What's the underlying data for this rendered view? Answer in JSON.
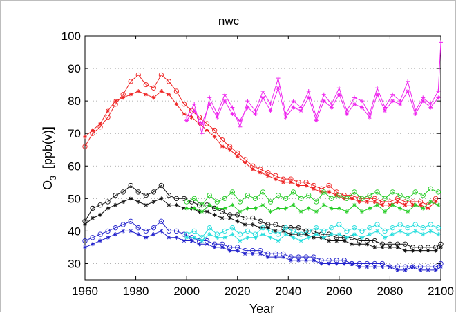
{
  "chart_data": {
    "type": "line",
    "title": "nwc",
    "xlabel": "Year",
    "ylabel_main": "O",
    "ylabel_sub": "3",
    "ylabel_unit": "[ppb(v)]",
    "xlim": [
      1960,
      2100
    ],
    "ylim": [
      25,
      100
    ],
    "xticks": [
      1960,
      1980,
      2000,
      2020,
      2040,
      2060,
      2080,
      2100
    ],
    "yticks": [
      30,
      40,
      50,
      60,
      70,
      80,
      90,
      100
    ],
    "grid": "horizontal dotted",
    "series": [
      {
        "color": "#ee2222",
        "marker": "circle",
        "x": [
          1960,
          1963,
          1966,
          1969,
          1972,
          1975,
          1978,
          1981,
          1984,
          1987,
          1990,
          1993,
          1996,
          1999,
          2002,
          2005,
          2008,
          2011,
          2014,
          2017,
          2020,
          2023,
          2026,
          2029,
          2032,
          2035,
          2038,
          2041,
          2044,
          2047,
          2050,
          2053,
          2056,
          2059,
          2062,
          2065,
          2068,
          2071,
          2074,
          2077,
          2080,
          2083,
          2086,
          2089,
          2092,
          2095,
          2098
        ],
        "values": [
          66,
          70,
          72,
          75,
          79,
          82,
          86,
          88,
          85,
          84,
          88,
          86,
          83,
          79,
          77,
          75,
          73,
          71,
          68,
          66,
          64,
          62,
          60,
          59,
          58,
          57,
          56,
          56,
          55,
          55,
          54,
          53,
          54,
          52,
          51,
          51,
          50,
          50,
          50,
          49,
          49,
          50,
          49,
          49,
          49,
          48,
          50
        ]
      },
      {
        "color": "#ee2222",
        "marker": "star",
        "x": [
          1960,
          1963,
          1966,
          1969,
          1972,
          1975,
          1978,
          1981,
          1984,
          1987,
          1990,
          1993,
          1996,
          1999,
          2002,
          2005,
          2008,
          2011,
          2014,
          2017,
          2020,
          2023,
          2026,
          2029,
          2032,
          2035,
          2038,
          2041,
          2044,
          2047,
          2050,
          2053,
          2056,
          2059,
          2062,
          2065,
          2068,
          2071,
          2074,
          2077,
          2080,
          2083,
          2086,
          2089,
          2092,
          2095,
          2098
        ],
        "values": [
          69,
          71,
          73,
          77,
          80,
          81,
          82,
          83,
          82,
          81,
          83,
          82,
          79,
          76,
          75,
          73,
          71,
          69,
          66,
          65,
          63,
          61,
          59,
          58,
          57,
          56,
          55,
          55,
          54,
          54,
          53,
          52,
          52,
          51,
          50,
          50,
          49,
          49,
          49,
          48,
          48,
          49,
          48,
          48,
          48,
          47,
          49
        ]
      },
      {
        "color": "#ee22ee",
        "marker": "plus",
        "x": [
          2000,
          2003,
          2006,
          2009,
          2012,
          2015,
          2018,
          2021,
          2024,
          2027,
          2030,
          2033,
          2036,
          2039,
          2042,
          2045,
          2048,
          2051,
          2054,
          2057,
          2060,
          2063,
          2066,
          2069,
          2072,
          2075,
          2078,
          2081,
          2084,
          2087,
          2090,
          2093,
          2096,
          2099,
          2100
        ],
        "values": [
          75,
          79,
          70,
          81,
          76,
          82,
          78,
          72,
          80,
          77,
          83,
          79,
          87,
          76,
          80,
          78,
          83,
          75,
          82,
          79,
          84,
          77,
          81,
          80,
          76,
          84,
          78,
          82,
          80,
          86,
          77,
          81,
          79,
          83,
          98
        ]
      },
      {
        "color": "#ee22ee",
        "marker": "star",
        "x": [
          2000,
          2003,
          2006,
          2009,
          2012,
          2015,
          2018,
          2021,
          2024,
          2027,
          2030,
          2033,
          2036,
          2039,
          2042,
          2045,
          2048,
          2051,
          2054,
          2057,
          2060,
          2063,
          2066,
          2069,
          2072,
          2075,
          2078,
          2081,
          2084,
          2087,
          2090,
          2093,
          2096,
          2099
        ],
        "values": [
          74,
          77,
          73,
          79,
          75,
          80,
          76,
          74,
          78,
          76,
          81,
          77,
          84,
          75,
          78,
          77,
          81,
          74,
          80,
          78,
          82,
          76,
          79,
          78,
          75,
          82,
          77,
          80,
          79,
          83,
          76,
          80,
          78,
          81
        ]
      },
      {
        "color": "#111111",
        "marker": "circle",
        "x": [
          1960,
          1963,
          1966,
          1969,
          1972,
          1975,
          1978,
          1981,
          1984,
          1987,
          1990,
          1993,
          1996,
          1999,
          2002,
          2005,
          2008,
          2011,
          2014,
          2017,
          2020,
          2023,
          2026,
          2029,
          2032,
          2035,
          2038,
          2041,
          2044,
          2047,
          2050,
          2053,
          2056,
          2059,
          2062,
          2065,
          2068,
          2071,
          2074,
          2077,
          2080,
          2083,
          2086,
          2089,
          2092,
          2095,
          2098,
          2100
        ],
        "values": [
          43,
          47,
          48,
          49,
          51,
          52,
          54,
          52,
          51,
          52,
          54,
          51,
          50,
          50,
          49,
          48,
          48,
          47,
          46,
          45,
          45,
          44,
          44,
          43,
          42,
          42,
          41,
          41,
          41,
          40,
          40,
          39,
          39,
          38,
          38,
          38,
          37,
          37,
          37,
          36,
          36,
          36,
          36,
          35,
          35,
          35,
          35,
          36
        ]
      },
      {
        "color": "#111111",
        "marker": "star",
        "x": [
          1960,
          1963,
          1966,
          1969,
          1972,
          1975,
          1978,
          1981,
          1984,
          1987,
          1990,
          1993,
          1996,
          1999,
          2002,
          2005,
          2008,
          2011,
          2014,
          2017,
          2020,
          2023,
          2026,
          2029,
          2032,
          2035,
          2038,
          2041,
          2044,
          2047,
          2050,
          2053,
          2056,
          2059,
          2062,
          2065,
          2068,
          2071,
          2074,
          2077,
          2080,
          2083,
          2086,
          2089,
          2092,
          2095,
          2098,
          2100
        ],
        "values": [
          42,
          44,
          45,
          47,
          48,
          49,
          50,
          49,
          48,
          49,
          50,
          48,
          48,
          47,
          47,
          46,
          46,
          45,
          44,
          44,
          43,
          42,
          42,
          41,
          41,
          40,
          40,
          39,
          39,
          39,
          38,
          38,
          37,
          37,
          37,
          36,
          36,
          36,
          35,
          35,
          35,
          35,
          34,
          34,
          34,
          34,
          34,
          35
        ]
      },
      {
        "color": "#22cc22",
        "marker": "circle",
        "x": [
          2000,
          2003,
          2006,
          2009,
          2012,
          2015,
          2018,
          2021,
          2024,
          2027,
          2030,
          2033,
          2036,
          2039,
          2042,
          2045,
          2048,
          2051,
          2054,
          2057,
          2060,
          2063,
          2066,
          2069,
          2072,
          2075,
          2078,
          2081,
          2084,
          2087,
          2090,
          2093,
          2096,
          2099
        ],
        "values": [
          49,
          50,
          48,
          51,
          49,
          50,
          52,
          49,
          51,
          50,
          52,
          49,
          51,
          50,
          52,
          50,
          51,
          49,
          52,
          50,
          51,
          50,
          52,
          50,
          51,
          52,
          50,
          52,
          51,
          50,
          52,
          51,
          53,
          52
        ]
      },
      {
        "color": "#22cc22",
        "marker": "star",
        "x": [
          2000,
          2003,
          2006,
          2009,
          2012,
          2015,
          2018,
          2021,
          2024,
          2027,
          2030,
          2033,
          2036,
          2039,
          2042,
          2045,
          2048,
          2051,
          2054,
          2057,
          2060,
          2063,
          2066,
          2069,
          2072,
          2075,
          2078,
          2081,
          2084,
          2087,
          2090,
          2093,
          2096,
          2099
        ],
        "values": [
          47,
          47,
          46,
          48,
          47,
          47,
          48,
          46,
          47,
          47,
          48,
          46,
          47,
          47,
          48,
          46,
          47,
          46,
          48,
          47,
          47,
          46,
          48,
          46,
          47,
          48,
          46,
          48,
          47,
          46,
          48,
          47,
          49,
          48
        ]
      },
      {
        "color": "#2222cc",
        "marker": "circle",
        "x": [
          1960,
          1963,
          1966,
          1969,
          1972,
          1975,
          1978,
          1981,
          1984,
          1987,
          1990,
          1993,
          1996,
          1999,
          2002,
          2005,
          2008,
          2011,
          2014,
          2017,
          2020,
          2023,
          2026,
          2029,
          2032,
          2035,
          2038,
          2041,
          2044,
          2047,
          2050,
          2053,
          2056,
          2059,
          2062,
          2065,
          2068,
          2071,
          2074,
          2077,
          2080,
          2083,
          2086,
          2089,
          2092,
          2095,
          2098,
          2100
        ],
        "values": [
          37,
          38,
          39,
          40,
          41,
          42,
          43,
          41,
          40,
          41,
          43,
          40,
          40,
          39,
          38,
          37,
          37,
          36,
          36,
          35,
          35,
          34,
          34,
          34,
          33,
          33,
          33,
          32,
          32,
          32,
          32,
          31,
          31,
          31,
          31,
          30,
          30,
          30,
          30,
          30,
          29,
          29,
          29,
          29,
          29,
          29,
          29,
          30
        ]
      },
      {
        "color": "#2222cc",
        "marker": "star",
        "x": [
          1960,
          1963,
          1966,
          1969,
          1972,
          1975,
          1978,
          1981,
          1984,
          1987,
          1990,
          1993,
          1996,
          1999,
          2002,
          2005,
          2008,
          2011,
          2014,
          2017,
          2020,
          2023,
          2026,
          2029,
          2032,
          2035,
          2038,
          2041,
          2044,
          2047,
          2050,
          2053,
          2056,
          2059,
          2062,
          2065,
          2068,
          2071,
          2074,
          2077,
          2080,
          2083,
          2086,
          2089,
          2092,
          2095,
          2098,
          2100
        ],
        "values": [
          35,
          36,
          37,
          38,
          39,
          40,
          40,
          39,
          38,
          39,
          40,
          38,
          38,
          37,
          37,
          36,
          36,
          35,
          35,
          34,
          34,
          33,
          33,
          33,
          32,
          32,
          32,
          31,
          31,
          31,
          31,
          30,
          30,
          30,
          30,
          30,
          29,
          29,
          29,
          29,
          29,
          28,
          28,
          29,
          28,
          28,
          28,
          29
        ]
      },
      {
        "color": "#22dddd",
        "marker": "circle",
        "x": [
          2000,
          2003,
          2006,
          2009,
          2012,
          2015,
          2018,
          2021,
          2024,
          2027,
          2030,
          2033,
          2036,
          2039,
          2042,
          2045,
          2048,
          2051,
          2054,
          2057,
          2060,
          2063,
          2066,
          2069,
          2072,
          2075,
          2078,
          2081,
          2084,
          2087,
          2090,
          2093,
          2096,
          2099
        ],
        "values": [
          39,
          40,
          38,
          41,
          39,
          40,
          41,
          39,
          40,
          39,
          41,
          40,
          39,
          41,
          40,
          39,
          40,
          41,
          40,
          41,
          42,
          40,
          41,
          40,
          41,
          42,
          40,
          41,
          42,
          41,
          42,
          41,
          42,
          41
        ]
      },
      {
        "color": "#22dddd",
        "marker": "star",
        "x": [
          2000,
          2003,
          2006,
          2009,
          2012,
          2015,
          2018,
          2021,
          2024,
          2027,
          2030,
          2033,
          2036,
          2039,
          2042,
          2045,
          2048,
          2051,
          2054,
          2057,
          2060,
          2063,
          2066,
          2069,
          2072,
          2075,
          2078,
          2081,
          2084,
          2087,
          2090,
          2093,
          2096,
          2099
        ],
        "values": [
          38,
          38,
          37,
          39,
          38,
          38,
          39,
          37,
          38,
          38,
          39,
          38,
          37,
          39,
          38,
          37,
          38,
          39,
          38,
          39,
          39,
          38,
          39,
          38,
          39,
          40,
          38,
          39,
          40,
          39,
          40,
          39,
          40,
          39
        ]
      }
    ]
  }
}
